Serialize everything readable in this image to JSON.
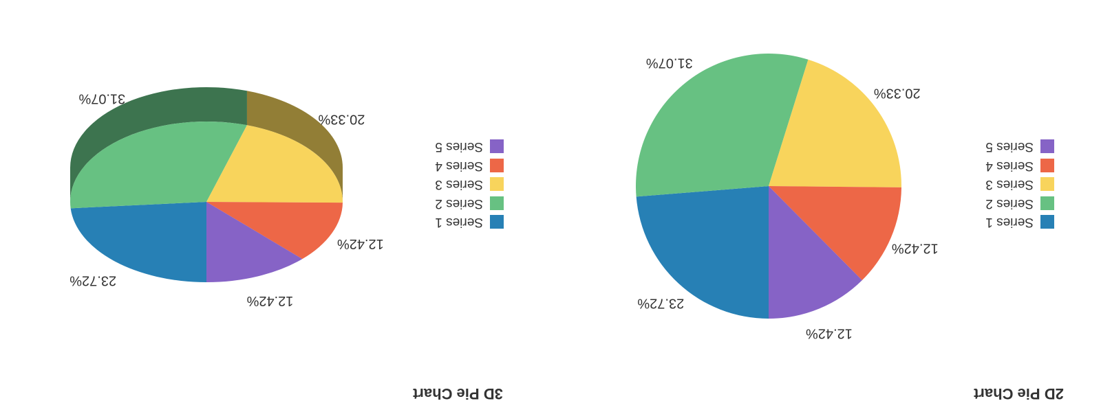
{
  "chart_data": [
    {
      "type": "pie",
      "title": "2D Pie Chart",
      "categories": [
        "Series 1",
        "Series 2",
        "Series 3",
        "Series 4",
        "Series 5"
      ],
      "values": [
        23.72,
        31.07,
        20.33,
        12.42,
        12.42
      ],
      "labels": [
        "23.72%",
        "31.07%",
        "20.33%",
        "12.42%",
        "12.42%"
      ],
      "colors": [
        "#2780b5",
        "#67c182",
        "#f8d45c",
        "#ed6747",
        "#8663c6"
      ],
      "legend": [
        "Series 1",
        "Series 2",
        "Series 3",
        "Series 4",
        "Series 5"
      ],
      "legend_placement": "right",
      "view": "2d"
    },
    {
      "type": "pie",
      "title": "3D Pie Chart",
      "categories": [
        "Series 1",
        "Series 2",
        "Series 3",
        "Series 4",
        "Series 5"
      ],
      "values": [
        23.72,
        31.07,
        20.33,
        12.42,
        12.42
      ],
      "labels": [
        "23.72%",
        "31.07%",
        "20.33%",
        "12.42%",
        "12.42%"
      ],
      "colors": [
        "#2780b5",
        "#67c182",
        "#f8d45c",
        "#ed6747",
        "#8663c6"
      ],
      "side_colors": [
        "#1c5a80",
        "#3d744f",
        "#927e36",
        "#a34630",
        "#5c4088"
      ],
      "legend": [
        "Series 1",
        "Series 2",
        "Series 3",
        "Series 4",
        "Series 5"
      ],
      "legend_placement": "right",
      "view": "3d"
    }
  ]
}
